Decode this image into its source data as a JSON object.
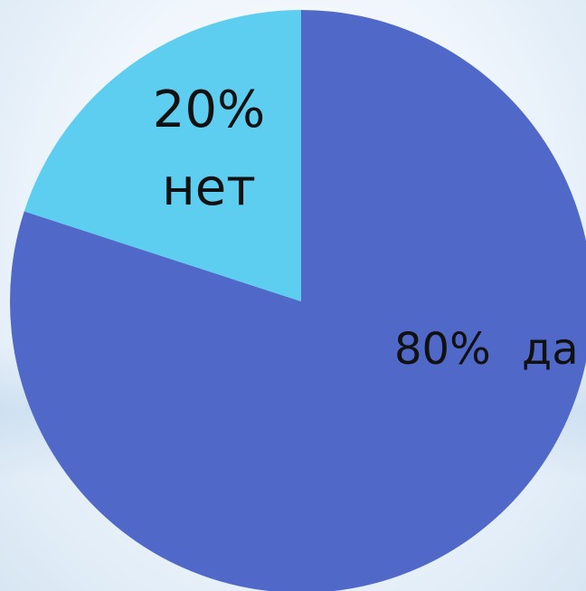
{
  "chart_data": {
    "type": "pie",
    "slices": [
      {
        "value": 80,
        "pct_label": "80%",
        "category": "да",
        "color": "#5068C8"
      },
      {
        "value": 20,
        "pct_label": "20%",
        "category": "нет",
        "color": "#5DCDF0"
      }
    ],
    "start_angle_deg": 0,
    "direction": "clockwise",
    "legend": "none"
  }
}
